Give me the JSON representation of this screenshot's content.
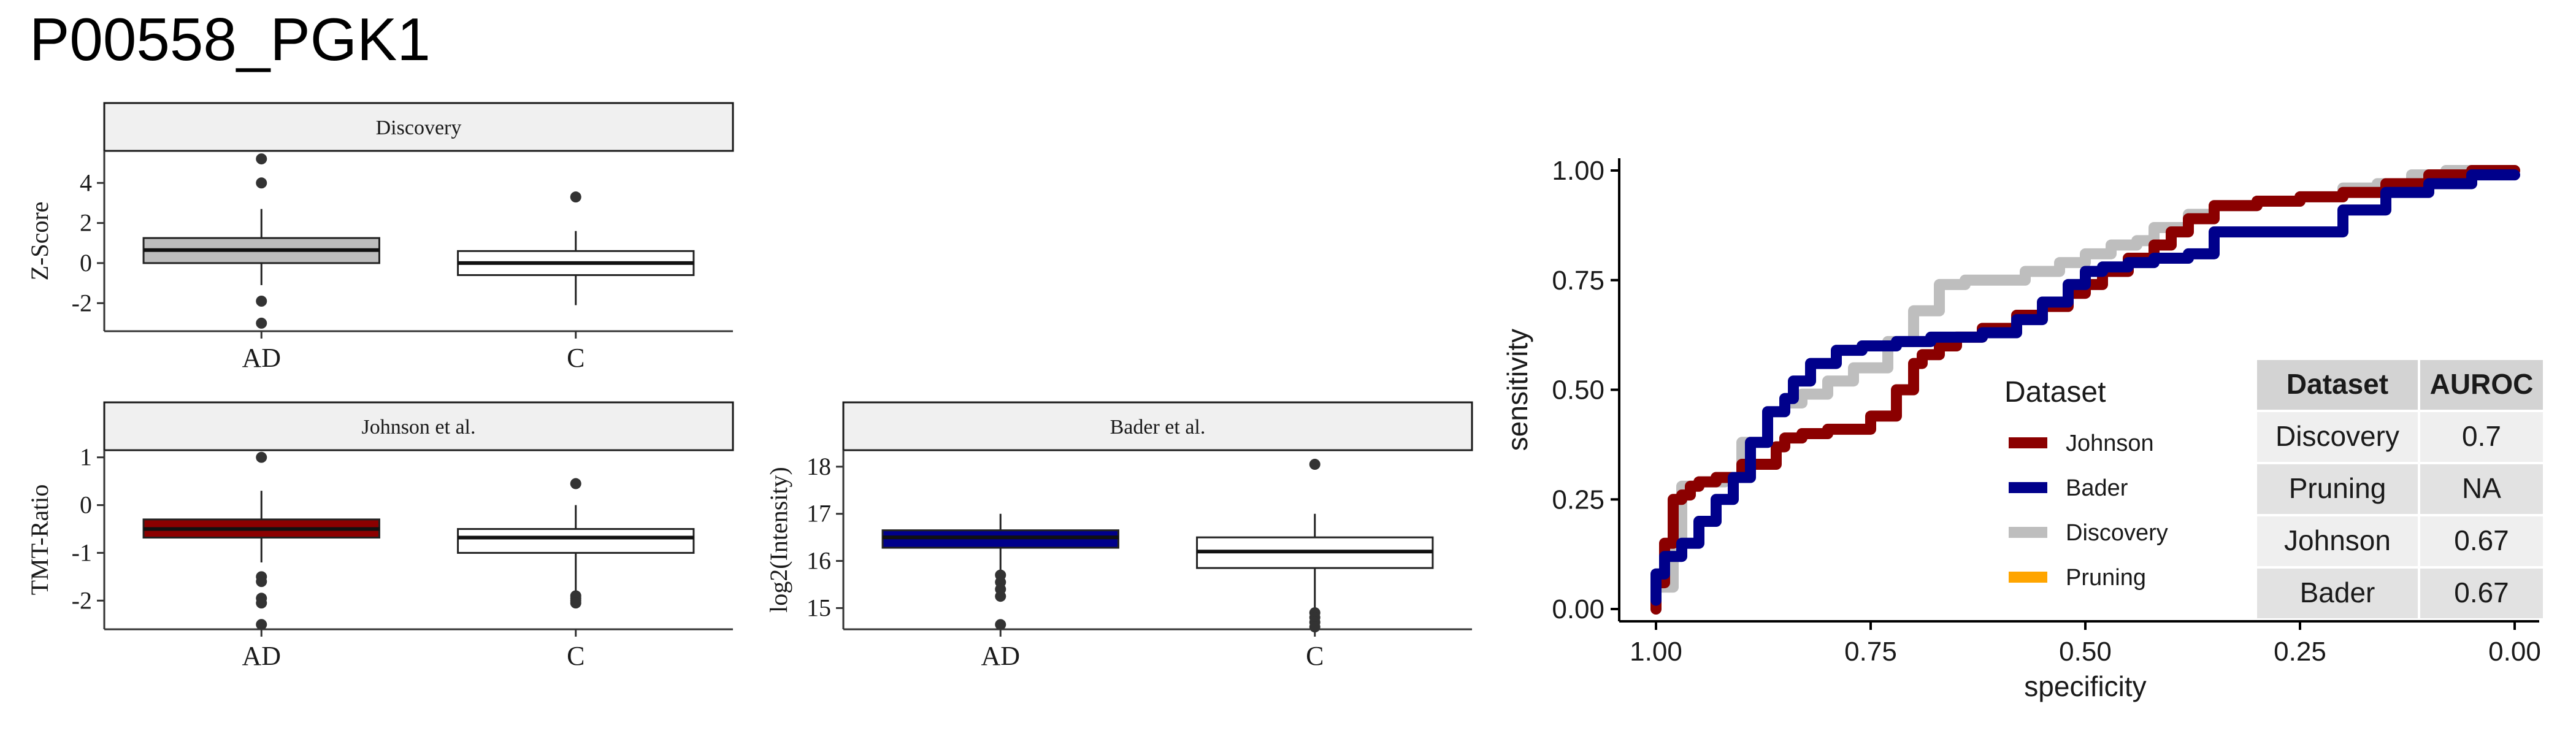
{
  "page_title": "P00558_PGK1",
  "chart_data": [
    {
      "type": "box",
      "panel": "Discovery",
      "title": "Discovery",
      "ylabel": "Z-Score",
      "ylim": [
        -3.4,
        5.6
      ],
      "yticks": [
        -2,
        0,
        2,
        4
      ],
      "categories": [
        "AD",
        "C"
      ],
      "boxes": [
        {
          "category": "AD",
          "q1": 0.0,
          "median": 0.65,
          "q3": 1.25,
          "whisker_low": -1.1,
          "whisker_high": 2.7,
          "outliers": [
            5.2,
            4.0,
            -1.9,
            -3.0
          ],
          "fill": "#bebebe"
        },
        {
          "category": "C",
          "q1": -0.6,
          "median": 0.0,
          "q3": 0.6,
          "whisker_low": -2.1,
          "whisker_high": 1.6,
          "outliers": [
            3.3
          ],
          "fill": "#ffffff"
        }
      ]
    },
    {
      "type": "box",
      "panel": "Johnson et al.",
      "title": "Johnson et al.",
      "ylabel": "TMT-Ratio",
      "ylim": [
        -2.6,
        1.15
      ],
      "yticks": [
        -2,
        -1,
        0,
        1
      ],
      "categories": [
        "AD",
        "C"
      ],
      "boxes": [
        {
          "category": "AD",
          "q1": -0.68,
          "median": -0.5,
          "q3": -0.3,
          "whisker_low": -1.2,
          "whisker_high": 0.3,
          "outliers": [
            1.0,
            -1.5,
            -1.6,
            -1.95,
            -2.05,
            -2.5
          ],
          "fill": "#8b0000"
        },
        {
          "category": "C",
          "q1": -1.0,
          "median": -0.68,
          "q3": -0.5,
          "whisker_low": -1.8,
          "whisker_high": 0.0,
          "outliers": [
            0.45,
            -1.9,
            -1.95,
            -2.0,
            -2.05
          ],
          "fill": "#ffffff"
        }
      ]
    },
    {
      "type": "box",
      "panel": "Bader et al.",
      "title": "Bader et al.",
      "ylabel": "log2(Intensity)",
      "ylim": [
        14.55,
        18.35
      ],
      "yticks": [
        15,
        16,
        17,
        18
      ],
      "categories": [
        "AD",
        "C"
      ],
      "boxes": [
        {
          "category": "AD",
          "q1": 16.28,
          "median": 16.5,
          "q3": 16.65,
          "whisker_low": 15.8,
          "whisker_high": 17.0,
          "outliers": [
            15.7,
            15.55,
            15.4,
            15.25,
            14.65
          ],
          "fill": "#00008b"
        },
        {
          "category": "C",
          "q1": 15.85,
          "median": 16.2,
          "q3": 16.5,
          "whisker_low": 15.0,
          "whisker_high": 17.0,
          "outliers": [
            18.05,
            14.9,
            14.8,
            14.7,
            14.6
          ],
          "fill": "#ffffff"
        }
      ]
    },
    {
      "type": "line",
      "panel": "ROC",
      "xlabel": "specificity",
      "ylabel": "sensitivity",
      "xlim": [
        1.0,
        0.0
      ],
      "ylim": [
        0.0,
        1.0
      ],
      "xticks": [
        "1.00",
        "0.75",
        "0.50",
        "0.25",
        "0.00"
      ],
      "yticks": [
        "0.00",
        "0.25",
        "0.50",
        "0.75",
        "1.00"
      ],
      "legend_title": "Dataset",
      "series": [
        {
          "name": "Johnson",
          "color": "#8b0000",
          "spec": [
            1.0,
            0.99,
            0.98,
            0.97,
            0.96,
            0.95,
            0.93,
            0.9,
            0.86,
            0.85,
            0.83,
            0.8,
            0.75,
            0.72,
            0.7,
            0.69,
            0.67,
            0.65,
            0.62,
            0.58,
            0.55,
            0.52,
            0.5,
            0.48,
            0.45,
            0.42,
            0.4,
            0.38,
            0.35,
            0.3,
            0.25,
            0.2,
            0.15,
            0.1,
            0.05,
            0.0
          ],
          "sens": [
            0.0,
            0.06,
            0.15,
            0.25,
            0.26,
            0.28,
            0.29,
            0.3,
            0.33,
            0.37,
            0.39,
            0.4,
            0.41,
            0.44,
            0.5,
            0.56,
            0.58,
            0.6,
            0.62,
            0.64,
            0.67,
            0.69,
            0.72,
            0.74,
            0.77,
            0.8,
            0.83,
            0.86,
            0.89,
            0.92,
            0.93,
            0.94,
            0.95,
            0.97,
            0.99,
            1.0
          ]
        },
        {
          "name": "Bader",
          "color": "#00008b",
          "spec": [
            1.0,
            0.99,
            0.97,
            0.95,
            0.93,
            0.91,
            0.89,
            0.87,
            0.85,
            0.84,
            0.82,
            0.79,
            0.76,
            0.72,
            0.68,
            0.62,
            0.58,
            0.55,
            0.52,
            0.5,
            0.48,
            0.45,
            0.42,
            0.38,
            0.35,
            0.3,
            0.25,
            0.2,
            0.15,
            0.1,
            0.05,
            0.0
          ],
          "sens": [
            0.02,
            0.08,
            0.12,
            0.15,
            0.2,
            0.25,
            0.3,
            0.38,
            0.45,
            0.48,
            0.52,
            0.56,
            0.59,
            0.6,
            0.61,
            0.62,
            0.63,
            0.66,
            0.7,
            0.74,
            0.77,
            0.78,
            0.79,
            0.8,
            0.81,
            0.86,
            0.86,
            0.86,
            0.91,
            0.95,
            0.97,
            0.99
          ]
        },
        {
          "name": "Discovery",
          "color": "#bebebe",
          "spec": [
            1.0,
            0.98,
            0.97,
            0.95,
            0.92,
            0.9,
            0.87,
            0.85,
            0.83,
            0.8,
            0.77,
            0.73,
            0.7,
            0.67,
            0.64,
            0.6,
            0.57,
            0.53,
            0.5,
            0.47,
            0.44,
            0.42,
            0.38,
            0.35,
            0.3,
            0.25,
            0.2,
            0.16,
            0.12,
            0.08,
            0.04,
            0.0
          ],
          "sens": [
            0.0,
            0.05,
            0.15,
            0.28,
            0.29,
            0.3,
            0.38,
            0.45,
            0.47,
            0.49,
            0.52,
            0.55,
            0.61,
            0.68,
            0.74,
            0.75,
            0.75,
            0.77,
            0.79,
            0.81,
            0.83,
            0.84,
            0.87,
            0.9,
            0.92,
            0.93,
            0.94,
            0.96,
            0.97,
            0.99,
            1.0,
            1.0
          ]
        },
        {
          "name": "Pruning",
          "color": "#ffa500",
          "spec": [],
          "sens": []
        }
      ],
      "table": {
        "headers": [
          "Dataset",
          "AUROC"
        ],
        "rows": [
          [
            "Discovery",
            "0.7"
          ],
          [
            "Pruning",
            "NA"
          ],
          [
            "Johnson",
            "0.67"
          ],
          [
            "Bader",
            "0.67"
          ]
        ]
      }
    }
  ]
}
